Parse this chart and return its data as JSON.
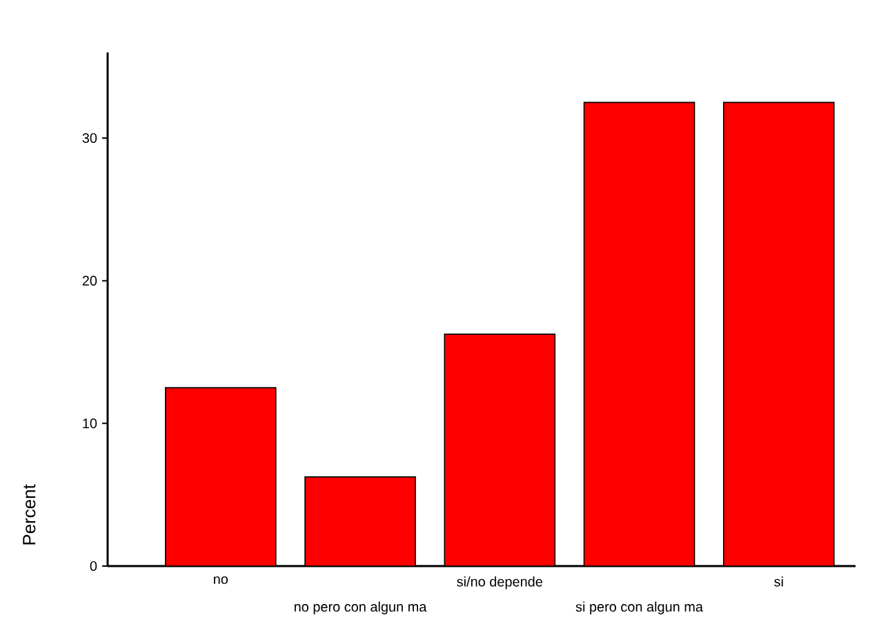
{
  "chart_data": {
    "type": "bar",
    "ylabel": "Percent",
    "categories": [
      "no",
      "no pero con algun ma",
      "si/no depende",
      "si pero con algun ma",
      "si"
    ],
    "values": [
      12.5,
      6.25,
      16.25,
      32.5,
      32.5
    ],
    "color": "#ff0000",
    "ylim": [
      0,
      36
    ],
    "yticks": [
      0,
      10,
      20,
      30
    ]
  }
}
